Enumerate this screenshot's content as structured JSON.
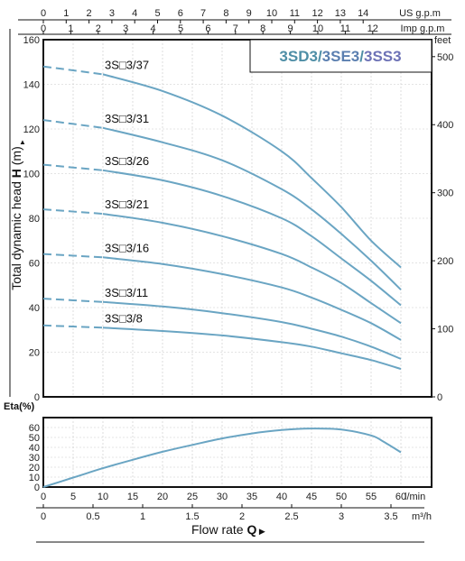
{
  "chart_data": [
    {
      "type": "line",
      "title_parts": [
        {
          "text": "3SD3",
          "color": "#4e8ea6"
        },
        {
          "text": "/",
          "color": "#4e8ea6"
        },
        {
          "text": "3SE3",
          "color": "#5b7fb0"
        },
        {
          "text": "/",
          "color": "#4e8ea6"
        },
        {
          "text": "3SS3",
          "color": "#6d72b6"
        }
      ],
      "ylabel_prefix": "Total dynamic head ",
      "ylabel_bold": "H",
      "ylabel_suffix": " (m)",
      "ylabel_arrow": "▲",
      "ylim": [
        0,
        160
      ],
      "yticks": [
        0,
        20,
        40,
        60,
        80,
        100,
        120,
        140,
        160
      ],
      "right_axis": {
        "label": "feet",
        "ticks": [
          0,
          100,
          200,
          300,
          400,
          500
        ]
      },
      "top_axes": [
        {
          "label": "US g.p.m",
          "ticks": [
            "0",
            "1",
            "2",
            "3",
            "4",
            "5",
            "6",
            "7",
            "8",
            "9",
            "10",
            "11",
            "12",
            "13",
            "14"
          ]
        },
        {
          "label": "Imp g.p.m",
          "ticks": [
            "0",
            "1",
            "2",
            "3",
            "4",
            "5",
            "6",
            "7",
            "8",
            "9",
            "10",
            "11",
            "12"
          ]
        }
      ],
      "xlim": [
        0,
        60
      ],
      "grid": true,
      "line_color": "#6aa5c3",
      "series": [
        {
          "name": "3S□3/37",
          "x": [
            0,
            10,
            20,
            30,
            40,
            45,
            50,
            55,
            60
          ],
          "y": [
            148,
            144.5,
            137,
            126,
            110,
            98,
            85,
            70,
            58
          ]
        },
        {
          "name": "3S□3/31",
          "x": [
            0,
            10,
            20,
            30,
            40,
            45,
            50,
            55,
            60
          ],
          "y": [
            124,
            120.5,
            114,
            106,
            93,
            84,
            73,
            61,
            48
          ]
        },
        {
          "name": "3S□3/26",
          "x": [
            0,
            10,
            20,
            30,
            40,
            45,
            50,
            55,
            60
          ],
          "y": [
            104,
            101.5,
            97,
            90,
            80,
            72,
            62,
            52,
            41
          ]
        },
        {
          "name": "3S□3/21",
          "x": [
            0,
            10,
            20,
            30,
            40,
            45,
            50,
            55,
            60
          ],
          "y": [
            84,
            82,
            78,
            72,
            64,
            58,
            51,
            42,
            33
          ]
        },
        {
          "name": "3S□3/16",
          "x": [
            0,
            10,
            20,
            30,
            40,
            45,
            50,
            55,
            60
          ],
          "y": [
            64,
            62.5,
            59.5,
            55,
            49,
            44.5,
            39,
            33,
            25.5
          ]
        },
        {
          "name": "3S□3/11",
          "x": [
            0,
            10,
            20,
            30,
            40,
            45,
            50,
            55,
            60
          ],
          "y": [
            44,
            42.5,
            40.5,
            37.5,
            33.5,
            30.5,
            27,
            22.5,
            17
          ]
        },
        {
          "name": "3S□3/8",
          "x": [
            0,
            10,
            20,
            30,
            40,
            45,
            50,
            55,
            60
          ],
          "y": [
            32,
            31,
            29.5,
            27.5,
            24.5,
            22.5,
            19.5,
            16.5,
            12.5
          ]
        }
      ]
    },
    {
      "type": "line",
      "ylabel": "Eta(%)",
      "ylim": [
        0,
        70
      ],
      "yticks": [
        0,
        10,
        20,
        30,
        40,
        50,
        60
      ],
      "xlim": [
        0,
        60
      ],
      "xticks": [
        0,
        5,
        10,
        15,
        20,
        25,
        30,
        35,
        40,
        45,
        50,
        55,
        60
      ],
      "xunit": "l/min",
      "secondary_x": {
        "unit": "m³/h",
        "ticks": [
          "0",
          "0.5",
          "1",
          "1.5",
          "2",
          "2.5",
          "3",
          "3.5"
        ]
      },
      "xlabel_prefix": "Flow  rate  ",
      "xlabel_bold": "Q",
      "xlabel_arrow": "▶",
      "grid": true,
      "line_color": "#6aa5c3",
      "series": [
        {
          "x": [
            0,
            5,
            10,
            15,
            20,
            25,
            30,
            35,
            40,
            45,
            50,
            55,
            57,
            60
          ],
          "y": [
            0,
            9.5,
            19,
            27.5,
            35.5,
            42.5,
            49,
            54,
            57.5,
            59,
            58,
            52,
            46,
            35
          ]
        }
      ]
    }
  ]
}
